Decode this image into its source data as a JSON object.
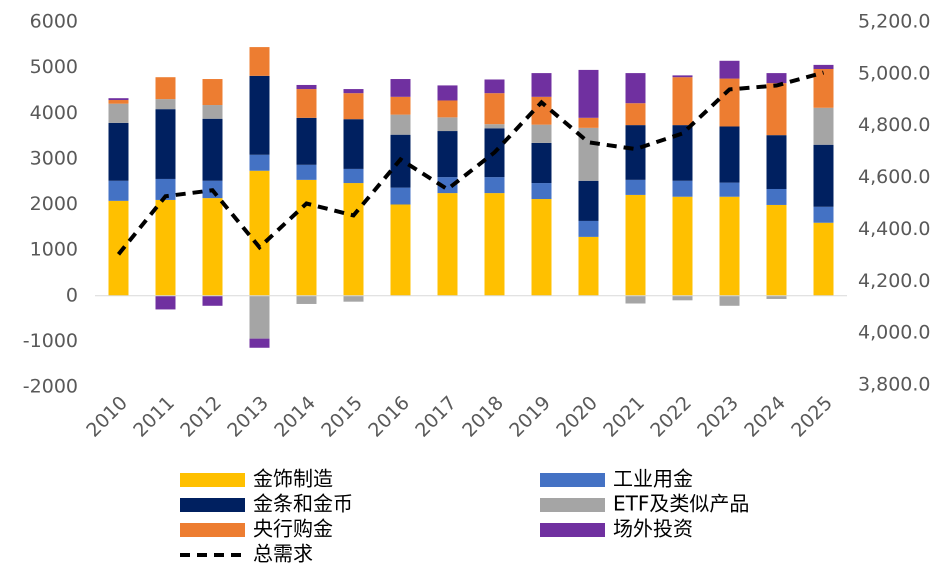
{
  "chart_data": {
    "type": "bar",
    "categories": [
      "2010",
      "2011",
      "2012",
      "2013",
      "2014",
      "2015",
      "2016",
      "2017",
      "2018",
      "2019",
      "2020",
      "2021",
      "2022",
      "2023",
      "2024",
      "2025"
    ],
    "series": [
      {
        "name": "金饰制造",
        "color": "#FFC000",
        "values": [
          2080,
          2100,
          2140,
          2740,
          2540,
          2470,
          2000,
          2250,
          2250,
          2120,
          1290,
          2210,
          2170,
          2170,
          1990,
          1600
        ]
      },
      {
        "name": "工业用金",
        "color": "#4472C4",
        "values": [
          440,
          460,
          380,
          350,
          330,
          310,
          370,
          350,
          350,
          350,
          350,
          330,
          350,
          310,
          350,
          350
        ]
      },
      {
        "name": "金条和金币",
        "color": "#002060",
        "values": [
          1270,
          1530,
          1360,
          1730,
          1030,
          1090,
          1160,
          1010,
          1070,
          880,
          880,
          1200,
          1220,
          1230,
          1180,
          1360
        ]
      },
      {
        "name": "ETF及类似产品",
        "color": "#A5A5A5",
        "values": [
          420,
          220,
          300,
          -940,
          -180,
          -130,
          440,
          300,
          90,
          400,
          1160,
          -170,
          -100,
          -220,
          -70,
          810
        ]
      },
      {
        "name": "央行购金",
        "color": "#ED7D31",
        "values": [
          80,
          480,
          570,
          630,
          630,
          570,
          390,
          370,
          680,
          610,
          220,
          480,
          1050,
          1050,
          1140,
          850
        ]
      },
      {
        "name": "场外投资",
        "color": "#7030A0",
        "values": [
          40,
          -300,
          -220,
          -200,
          90,
          90,
          390,
          330,
          300,
          520,
          1050,
          660,
          40,
          390,
          220,
          90
        ]
      },
      {
        "name": "总需求",
        "color": "#000000",
        "type": "line",
        "axis": "y2",
        "values": [
          4304,
          4528,
          4551,
          4331,
          4500,
          4454,
          4670,
          4555,
          4697,
          4890,
          4736,
          4710,
          4770,
          4940,
          4955,
          5005
        ]
      }
    ],
    "ylim": [
      -2000,
      6000
    ],
    "yticks": [
      -2000,
      -1000,
      0,
      1000,
      2000,
      3000,
      4000,
      5000,
      6000
    ],
    "y2lim": [
      3800,
      5200
    ],
    "y2ticks": [
      {
        "value": 3800,
        "label": "3,800.0"
      },
      {
        "value": 4000,
        "label": "4,000.0"
      },
      {
        "value": 4200,
        "label": "4,200.0"
      },
      {
        "value": 4400,
        "label": "4,400.0"
      },
      {
        "value": 4600,
        "label": "4,600.0"
      },
      {
        "value": 4800,
        "label": "4,800.0"
      },
      {
        "value": 5000,
        "label": "5,000.0"
      },
      {
        "value": 5200,
        "label": "5,200.0"
      }
    ],
    "legend": "bottom"
  }
}
